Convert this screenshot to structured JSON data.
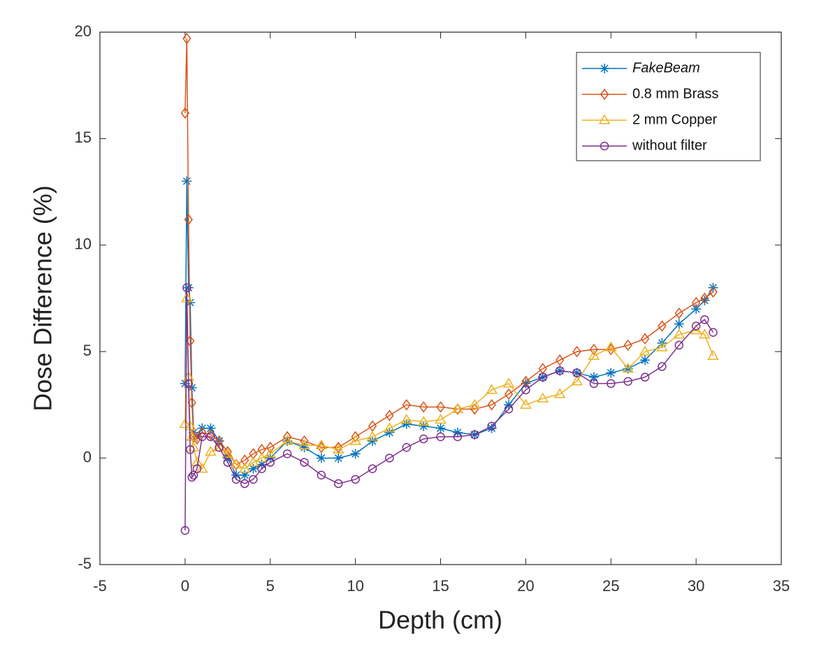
{
  "chart_data": {
    "type": "line",
    "xlabel": "Depth (cm)",
    "ylabel": "Dose Difference (%)",
    "xlim": [
      -5,
      35
    ],
    "xticks": [
      -5,
      0,
      5,
      10,
      15,
      20,
      25,
      30,
      35
    ],
    "ylim": [
      -5,
      20
    ],
    "yticks": [
      -5,
      0,
      5,
      10,
      15,
      20
    ],
    "legend": "upper right",
    "x": [
      0,
      0.1,
      0.2,
      0.3,
      0.4,
      0.5,
      0.7,
      1,
      1.5,
      2,
      2.5,
      3,
      3.5,
      4,
      4.5,
      5,
      6,
      7,
      8,
      9,
      10,
      11,
      12,
      13,
      14,
      15,
      16,
      17,
      18,
      19,
      20,
      21,
      22,
      23,
      24,
      25,
      26,
      27,
      28,
      29,
      30,
      30.5,
      31
    ],
    "series": [
      {
        "name": "FakeBeam",
        "color": "#0072BD",
        "marker": "star",
        "values": [
          3.5,
          13,
          8,
          7.3,
          3.3,
          1.2,
          1.0,
          1.4,
          1.4,
          0.8,
          0,
          -0.8,
          -0.8,
          -0.5,
          -0.3,
          0,
          0.8,
          0.5,
          0,
          0,
          0.2,
          0.8,
          1.2,
          1.6,
          1.5,
          1.4,
          1.2,
          1.1,
          1.4,
          2.5,
          3.5,
          3.8,
          4.1,
          4.0,
          3.8,
          4.0,
          4.2,
          4.6,
          5.4,
          6.3,
          7.0,
          7.4,
          8.0
        ]
      },
      {
        "name": "0.8 mm Brass",
        "color": "#D95319",
        "marker": "diamond",
        "values": [
          16.2,
          19.7,
          11.2,
          5.5,
          2.6,
          1.0,
          0.9,
          1.2,
          1.1,
          0.8,
          0.3,
          -0.3,
          -0.1,
          0.2,
          0.4,
          0.5,
          1.0,
          0.8,
          0.5,
          0.5,
          1.0,
          1.5,
          2.0,
          2.5,
          2.4,
          2.4,
          2.3,
          2.3,
          2.5,
          3.0,
          3.6,
          4.2,
          4.6,
          5.0,
          5.1,
          5.1,
          5.3,
          5.6,
          6.2,
          6.8,
          7.3,
          7.5,
          7.8
        ]
      },
      {
        "name": "2 mm Copper",
        "color": "#EDB120",
        "marker": "triangle",
        "values": [
          1.6,
          7.5,
          3.8,
          1.5,
          1.0,
          0.5,
          -0.2,
          -0.5,
          0.3,
          0.5,
          0.2,
          -0.3,
          -0.5,
          -0.2,
          0,
          0.2,
          0.8,
          0.6,
          0.6,
          0.4,
          0.8,
          1.0,
          1.4,
          1.8,
          1.7,
          1.8,
          2.3,
          2.5,
          3.2,
          3.5,
          2.5,
          2.8,
          3.0,
          3.6,
          4.8,
          5.2,
          4.2,
          5.0,
          5.2,
          5.8,
          6.0,
          5.8,
          4.8
        ]
      },
      {
        "name": "without filter",
        "color": "#7E2F8E",
        "marker": "circle",
        "values": [
          -3.4,
          8,
          3.5,
          0.4,
          -0.9,
          -0.8,
          -0.5,
          1.0,
          1.0,
          0.5,
          -0.2,
          -1.0,
          -1.2,
          -1.0,
          -0.5,
          -0.2,
          0.2,
          -0.2,
          -0.8,
          -1.2,
          -1.0,
          -0.5,
          0,
          0.5,
          0.9,
          1.0,
          1.0,
          1.1,
          1.5,
          2.3,
          3.2,
          3.8,
          4.1,
          4.0,
          3.5,
          3.5,
          3.6,
          3.8,
          4.3,
          5.3,
          6.2,
          6.5,
          5.9
        ]
      }
    ]
  }
}
